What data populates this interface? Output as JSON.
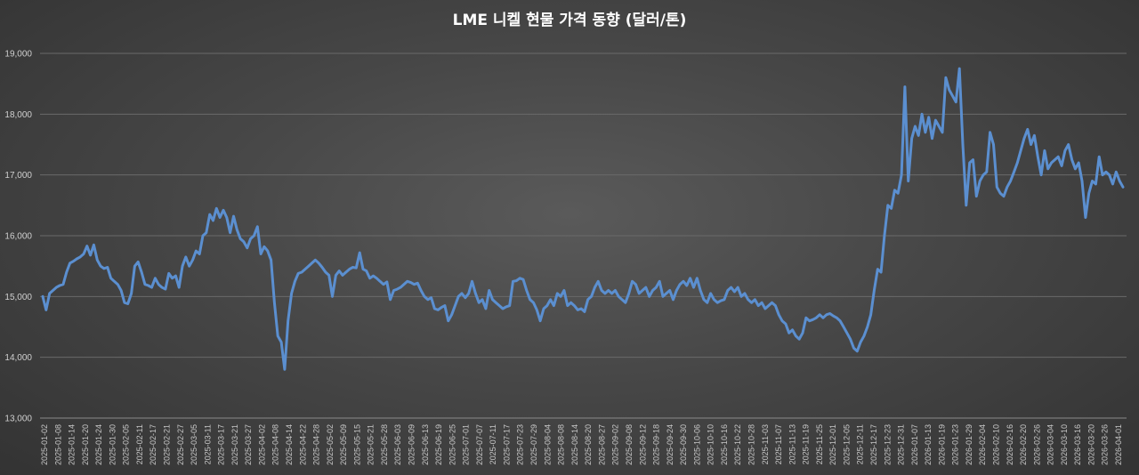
{
  "chart_data": {
    "type": "line",
    "title": "LME 니켈 현물 가격 동향 (달러/톤)",
    "xlabel": "",
    "ylabel": "",
    "ylim": [
      13000,
      19000
    ],
    "yticks": [
      13000,
      14000,
      15000,
      16000,
      17000,
      18000,
      19000
    ],
    "ytick_labels": [
      "13,000",
      "14,000",
      "15,000",
      "16,000",
      "17,000",
      "18,000",
      "19,000"
    ],
    "grid": true,
    "legend": "none",
    "line_color": "#5b8fd0",
    "x_tick_labels": [
      "2025-01-02",
      "2025-01-08",
      "2025-01-14",
      "2025-01-20",
      "2025-01-24",
      "2025-01-30",
      "2025-02-05",
      "2025-02-11",
      "2025-02-17",
      "2025-02-21",
      "2025-02-27",
      "2025-03-05",
      "2025-03-11",
      "2025-03-17",
      "2025-03-21",
      "2025-03-27",
      "2025-04-02",
      "2025-04-08",
      "2025-04-14",
      "2025-04-22",
      "2025-04-28",
      "2025-05-02",
      "2025-05-09",
      "2025-05-15",
      "2025-05-21",
      "2025-05-28",
      "2025-06-03",
      "2025-06-09",
      "2025-06-13",
      "2025-06-19",
      "2025-06-25",
      "2025-07-01",
      "2025-07-07",
      "2025-07-11",
      "2025-07-17",
      "2025-07-23",
      "2025-07-29",
      "2025-08-04",
      "2025-08-08",
      "2025-08-14",
      "2025-08-20",
      "2025-08-27",
      "2025-09-02",
      "2025-09-08",
      "2025-09-12",
      "2025-09-18",
      "2025-09-24",
      "2025-09-30",
      "2025-10-06",
      "2025-10-10",
      "2025-10-16",
      "2025-10-22",
      "2025-10-28",
      "2025-11-03",
      "2025-11-07",
      "2025-11-13",
      "2025-11-19",
      "2025-11-25",
      "2025-12-01",
      "2025-12-05",
      "2025-12-11",
      "2025-12-17",
      "2025-12-23",
      "2025-12-31",
      "2026-01-07",
      "2026-01-13",
      "2026-01-19",
      "2026-01-23",
      "2026-01-29",
      "2026-02-04",
      "2026-02-10",
      "2026-02-16",
      "2026-02-20",
      "2026-02-26",
      "2026-03-04",
      "2026-03-10",
      "2026-03-16",
      "2026-03-20",
      "2026-03-26",
      "2026-04-01"
    ],
    "series": [
      {
        "values": [
          15000,
          14780,
          15050,
          15100,
          15150,
          15180,
          15200,
          15400,
          15550,
          15580,
          15620,
          15650,
          15700,
          15830,
          15680,
          15850,
          15600,
          15500,
          15460,
          15480,
          15300,
          15250,
          15200,
          15100,
          14900,
          14880,
          15050,
          15500,
          15570,
          15400,
          15200,
          15180,
          15150,
          15300,
          15200,
          15150,
          15120,
          15380,
          15300,
          15340,
          15150,
          15500,
          15650,
          15500,
          15600,
          15750,
          15700,
          16000,
          16050,
          16350,
          16250,
          16450,
          16300,
          16420,
          16300,
          16050,
          16320,
          16100,
          15950,
          15900,
          15800,
          15950,
          16000,
          16150,
          15700,
          15820,
          15750,
          15600,
          14900,
          14350,
          14250,
          13800,
          14600,
          15050,
          15250,
          15380,
          15400,
          15450,
          15500,
          15550,
          15600,
          15550,
          15480,
          15400,
          15350,
          15000,
          15350,
          15420,
          15350,
          15400,
          15450,
          15480,
          15470,
          15720,
          15450,
          15420,
          15300,
          15340,
          15300,
          15250,
          15200,
          15240,
          14950,
          15100,
          15120,
          15150,
          15200,
          15250,
          15230,
          15200,
          15220,
          15100,
          15000,
          14950,
          14980,
          14800,
          14780,
          14820,
          14850,
          14600,
          14700,
          14850,
          15000,
          15050,
          14980,
          15050,
          15250,
          15050,
          14900,
          14950,
          14800,
          15100,
          14950,
          14900,
          14850,
          14800,
          14830,
          14850,
          15250,
          15260,
          15300,
          15280,
          15100,
          14950,
          14900,
          14780,
          14600,
          14800,
          14850,
          14950,
          14850,
          15050,
          15000,
          15100,
          14850,
          14900,
          14850,
          14780,
          14800,
          14750,
          14950,
          15000,
          15150,
          15250,
          15100,
          15050,
          15100,
          15050,
          15100,
          15000,
          14950,
          14900,
          15050,
          15250,
          15200,
          15050,
          15100,
          15150,
          15000,
          15100,
          15150,
          15250,
          15000,
          15050,
          15100,
          14950,
          15100,
          15200,
          15250,
          15180,
          15300,
          15150,
          15300,
          15100,
          14950,
          14900,
          15050,
          14950,
          14900,
          14930,
          14950,
          15100,
          15150,
          15080,
          15150,
          15000,
          15050,
          14950,
          14900,
          14950,
          14850,
          14900,
          14800,
          14850,
          14900,
          14850,
          14700,
          14600,
          14550,
          14400,
          14450,
          14350,
          14300,
          14400,
          14650,
          14600,
          14620,
          14650,
          14700,
          14650,
          14700,
          14720,
          14680,
          14650,
          14600,
          14500,
          14400,
          14300,
          14150,
          14100,
          14250,
          14350,
          14500,
          14700,
          15100,
          15450,
          15400,
          16000,
          16500,
          16450,
          16750,
          16700,
          17000,
          18450,
          16900,
          17600,
          17800,
          17650,
          18000,
          17700,
          17950,
          17600,
          17900,
          17800,
          17700,
          18600,
          18400,
          18300,
          18200,
          18750,
          17500,
          16500,
          17200,
          17250,
          16650,
          16900,
          17000,
          17050,
          17700,
          17500,
          16800,
          16700,
          16650,
          16800,
          16900,
          17050,
          17200,
          17400,
          17600,
          17750,
          17500,
          17650,
          17300,
          17000,
          17400,
          17100,
          17200,
          17250,
          17300,
          17150,
          17400,
          17500,
          17250,
          17100,
          17200,
          16900,
          16300,
          16700,
          16900,
          16850,
          17300,
          17000,
          17050,
          17000,
          16850,
          17050,
          16900,
          16800
        ]
      }
    ]
  }
}
